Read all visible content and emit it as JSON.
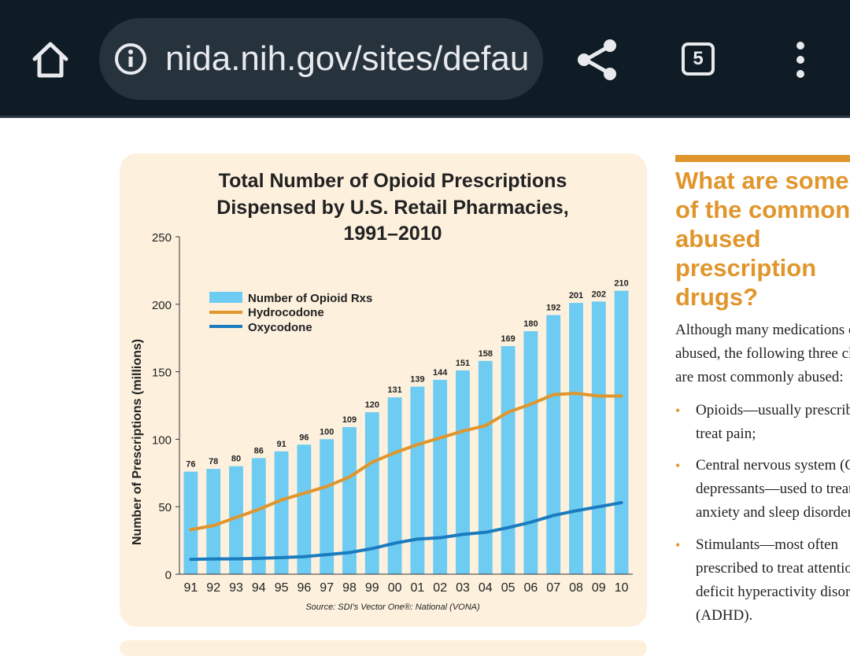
{
  "browser": {
    "url": "nida.nih.gov/sites/default/files/rrprescription.pdf",
    "tab_count": "5",
    "icons": [
      "home-icon",
      "info-icon",
      "share-icon",
      "tabs-icon",
      "more-vert-icon"
    ]
  },
  "chart_data": {
    "type": "bar",
    "title_lines": [
      "Total Number of Opioid Prescriptions",
      "Dispensed by U.S. Retail Pharmacies,",
      "1991–2010"
    ],
    "ylabel": "Number of Prescriptions (millions)",
    "xlabel": "",
    "ylim": [
      0,
      250
    ],
    "yticks": [
      0,
      50,
      100,
      150,
      200,
      250
    ],
    "categories": [
      "91",
      "92",
      "93",
      "94",
      "95",
      "96",
      "97",
      "98",
      "99",
      "00",
      "01",
      "02",
      "03",
      "04",
      "05",
      "06",
      "07",
      "08",
      "09",
      "10"
    ],
    "legend_position": "top-left",
    "series": [
      {
        "name": "Number of Opioid Rxs",
        "type": "bar",
        "color": "#6ecbf2",
        "values": [
          76,
          78,
          80,
          86,
          91,
          96,
          100,
          109,
          120,
          131,
          139,
          144,
          151,
          158,
          169,
          180,
          192,
          201,
          202,
          210
        ]
      },
      {
        "name": "Hydrocodone",
        "type": "line",
        "color": "#e0962c",
        "values": [
          33,
          36,
          42,
          48,
          55,
          60,
          65,
          72,
          83,
          90,
          96,
          101,
          106,
          110,
          120,
          126,
          133,
          134,
          132,
          132
        ]
      },
      {
        "name": "Oxycodone",
        "type": "line",
        "color": "#1a7bbf",
        "values": [
          11,
          11.3,
          11.4,
          11.7,
          12.3,
          13,
          14.5,
          16,
          19,
          23,
          26,
          27,
          29.5,
          31,
          34.5,
          38.5,
          43.5,
          47,
          50,
          53
        ]
      }
    ],
    "source": "Source: SDI's Vector One®: National (VONA)"
  },
  "article": {
    "heading_lines": [
      "What are some",
      "of the commonly",
      "abused",
      "prescription",
      "drugs?"
    ],
    "intro_lines": [
      "Although many medications can be",
      "abused, the following three classes",
      "are most commonly abused:"
    ],
    "bullets": [
      {
        "lines": [
          "Opioids—usually prescribed to",
          "treat pain;"
        ]
      },
      {
        "lines": [
          "Central nervous system (CNS)",
          "depressants—used to treat",
          "anxiety and sleep disorders; and"
        ]
      },
      {
        "lines": [
          "Stimulants—most often",
          "prescribed to treat attention-",
          "deficit hyperactivity disorder",
          "(ADHD)."
        ]
      }
    ],
    "accent_color": "#e0962c"
  }
}
